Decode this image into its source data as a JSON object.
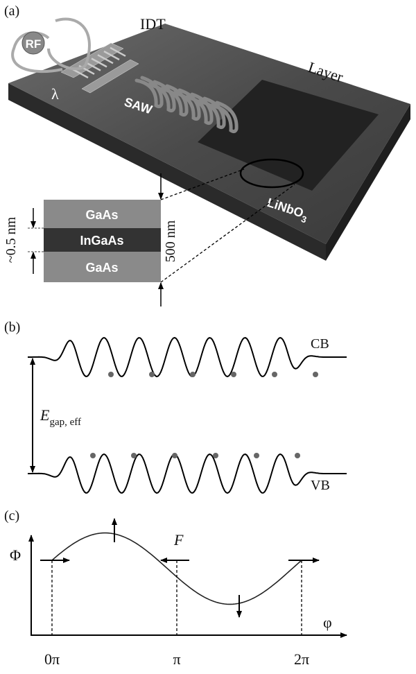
{
  "panel_a": {
    "label": "(a)",
    "idt": "IDT",
    "rf": "RF",
    "layer": "Layer",
    "wavelength": "λ",
    "saw": "SAW",
    "substrate": {
      "text": "LiNbO",
      "subscript": "3"
    },
    "stack": {
      "layers": [
        "GaAs",
        "InGaAs",
        "GaAs"
      ],
      "well_thickness": "~0.5 nm",
      "total_thickness": "500 nm"
    }
  },
  "panel_b": {
    "label": "(b)",
    "conduction_band": "CB",
    "valence_band": "VB",
    "gap": {
      "symbol": "E",
      "subscript": "gap, eff"
    }
  },
  "panel_c": {
    "label": "(c)",
    "y_axis": "Φ",
    "x_axis": "φ",
    "force": "F",
    "ticks": [
      "0π",
      "π",
      "2π"
    ]
  }
}
